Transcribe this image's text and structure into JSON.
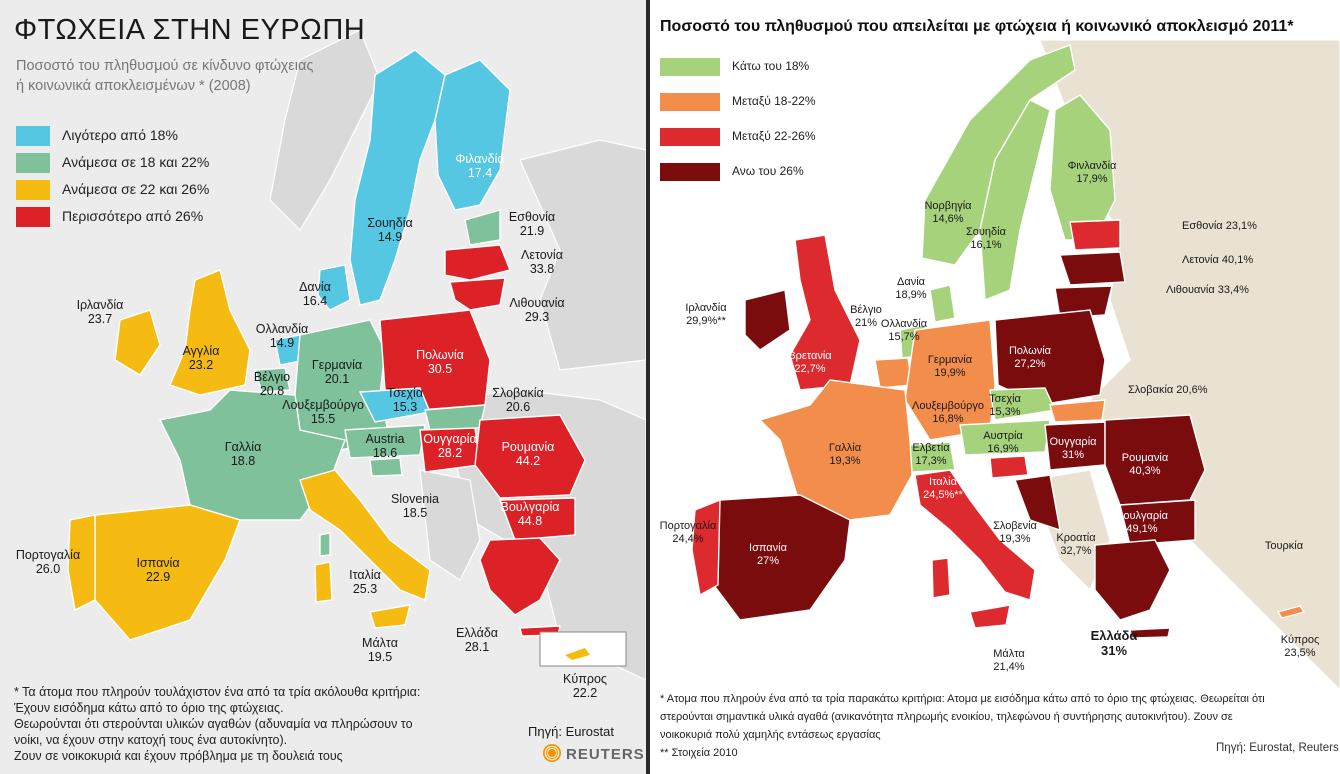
{
  "left": {
    "title": "ΦΤΩΧΕΙΑ ΣΤΗΝ ΕΥΡΩΠΗ",
    "subtitle_line1": "Ποσοστό του πληθυσμού σε κίνδυνο φτώχειας",
    "subtitle_line2": "ή κοινωνικά αποκλεισμένων * (2008)",
    "legend": [
      {
        "label": "Λιγότερο από 18%",
        "color": "#55c7e3"
      },
      {
        "label": "Ανάμεσα σε 18 και 22%",
        "color": "#7ec19a"
      },
      {
        "label": "Ανάμεσα σε 22 και 26%",
        "color": "#f6bb12"
      },
      {
        "label": "Περισσότερο από 26%",
        "color": "#dc2127"
      }
    ],
    "countries": [
      {
        "name": "Φιλανδία",
        "value": "17.4"
      },
      {
        "name": "Εσθονία",
        "value": "21.9"
      },
      {
        "name": "Σουηδία",
        "value": "14.9"
      },
      {
        "name": "Λετονία",
        "value": "33.8"
      },
      {
        "name": "Λιθουανία",
        "value": "29.3"
      },
      {
        "name": "Δανία",
        "value": "16.4"
      },
      {
        "name": "Ιρλανδία",
        "value": "23.7"
      },
      {
        "name": "Ολλανδία",
        "value": "14.9"
      },
      {
        "name": "Αγγλία",
        "value": "23.2"
      },
      {
        "name": "Γερμανία",
        "value": "20.1"
      },
      {
        "name": "Πολωνία",
        "value": "30.5"
      },
      {
        "name": "Βέλγιο",
        "value": "20.8"
      },
      {
        "name": "Λουξεμβούργο",
        "value": "15.5"
      },
      {
        "name": "Τσεχία",
        "value": "15.3"
      },
      {
        "name": "Σλοβακία",
        "value": "20.6"
      },
      {
        "name": "Austria",
        "value": "18.6"
      },
      {
        "name": "Ουγγαρία",
        "value": "28.2"
      },
      {
        "name": "Ρουμανία",
        "value": "44.2"
      },
      {
        "name": "Γαλλία",
        "value": "18.8"
      },
      {
        "name": "Slovenia",
        "value": "18.5"
      },
      {
        "name": "Βουλγαρία",
        "value": "44.8"
      },
      {
        "name": "Πορτογαλία",
        "value": "26.0"
      },
      {
        "name": "Ισπανία",
        "value": "22.9"
      },
      {
        "name": "Ιταλία",
        "value": "25.3"
      },
      {
        "name": "Μάλτα",
        "value": "19.5"
      },
      {
        "name": "Ελλάδα",
        "value": "28.1"
      },
      {
        "name": "Κύπρος",
        "value": "22.2"
      }
    ],
    "footnote": [
      "* Τα άτομα που πληρούν τουλάχιστον ένα από τα τρία ακόλουθα κριτήρια:",
      "Έχουν εισόδημα κάτω από το όριο της φτώχειας.",
      "Θεωρούνται ότι στερούνται υλικών αγαθών (αδυναμία να πληρώσουν το",
      "νοίκι, να έχουν στην κατοχή τους ένα αυτοκίνητο).",
      "Ζουν σε νοικοκυριά και έχουν πρόβλημα με τη δουλειά τους"
    ],
    "source": "Πηγή: Eurostat",
    "brand": "REUTERS"
  },
  "right": {
    "title": "Ποσοστό του πληθυσμού που απειλείται με φτώχεια ή κοινωνικό αποκλεισμό 2011*",
    "legend": [
      {
        "label": "Κάτω του 18%",
        "color": "#a5d27b"
      },
      {
        "label": "Μεταξύ 18-22%",
        "color": "#f28d4b"
      },
      {
        "label": "Μεταξύ 22-26%",
        "color": "#dd2a2f"
      },
      {
        "label": "Ανω του 26%",
        "color": "#7a0c0e"
      }
    ],
    "countries": [
      {
        "name": "Νορβηγία",
        "value": "14,6%"
      },
      {
        "name": "Σουηδία",
        "value": "16,1%"
      },
      {
        "name": "Φινλανδία",
        "value": "17,9%"
      },
      {
        "name": "Εσθονία",
        "value": "23,1%"
      },
      {
        "name": "Λετονία",
        "value": "40,1%"
      },
      {
        "name": "Λιθουανία",
        "value": "33,4%"
      },
      {
        "name": "Δανία",
        "value": "18,9%"
      },
      {
        "name": "Ιρλανδία",
        "value": "29,9%**"
      },
      {
        "name": "Βέλγιο",
        "value": "21%"
      },
      {
        "name": "Ολλανδία",
        "value": "15,7%"
      },
      {
        "name": "Βρετανία",
        "value": "22,7%"
      },
      {
        "name": "Γερμανία",
        "value": "19,9%"
      },
      {
        "name": "Πολωνία",
        "value": "27,2%"
      },
      {
        "name": "Λουξεμβούργο",
        "value": "16,8%"
      },
      {
        "name": "Τσεχία",
        "value": "15,3%"
      },
      {
        "name": "Σλοβακία",
        "value": "20,6%"
      },
      {
        "name": "Γαλλία",
        "value": "19,3%"
      },
      {
        "name": "Ελβετία",
        "value": "17,3%"
      },
      {
        "name": "Αυστρία",
        "value": "16,9%"
      },
      {
        "name": "Ουγγαρία",
        "value": "31%"
      },
      {
        "name": "Ρουμανία",
        "value": "40,3%"
      },
      {
        "name": "Ιταλία",
        "value": "24,5%**"
      },
      {
        "name": "Βουλγαρία",
        "value": "49,1%"
      },
      {
        "name": "Πορτογαλία",
        "value": "24,4%"
      },
      {
        "name": "Ισπανία",
        "value": "27%"
      },
      {
        "name": "Σλοβενία",
        "value": "19,3%"
      },
      {
        "name": "Κροατία",
        "value": "32,7%"
      },
      {
        "name": "Τουρκία",
        "value": ""
      },
      {
        "name": "Ελλάδα",
        "value": "31%"
      },
      {
        "name": "Μάλτα",
        "value": "21,4%"
      },
      {
        "name": "Κύπρος",
        "value": "23,5%"
      }
    ],
    "footnote_line1": "* Ατομα που πληρούν ένα από τα τρία παρακάτω κριτήρια: Ατομα με εισόδημα κάτω από το όριο της φτώχειας. Θεωρείται ότι",
    "footnote_line2": "στερούνται σημαντικά υλικά αγαθά (ανικανότητα πληρωμής ενοικίου, τηλεφώνου ή συντήρησης αυτοκινήτου). Ζουν σε",
    "footnote_line3": "νοικοκυριά πολύ χαμηλής εντάσεως εργασίας",
    "footnote_line4": "**  Στοιχεία 2010",
    "source": "Πηγή: Eurostat, Reuters"
  }
}
